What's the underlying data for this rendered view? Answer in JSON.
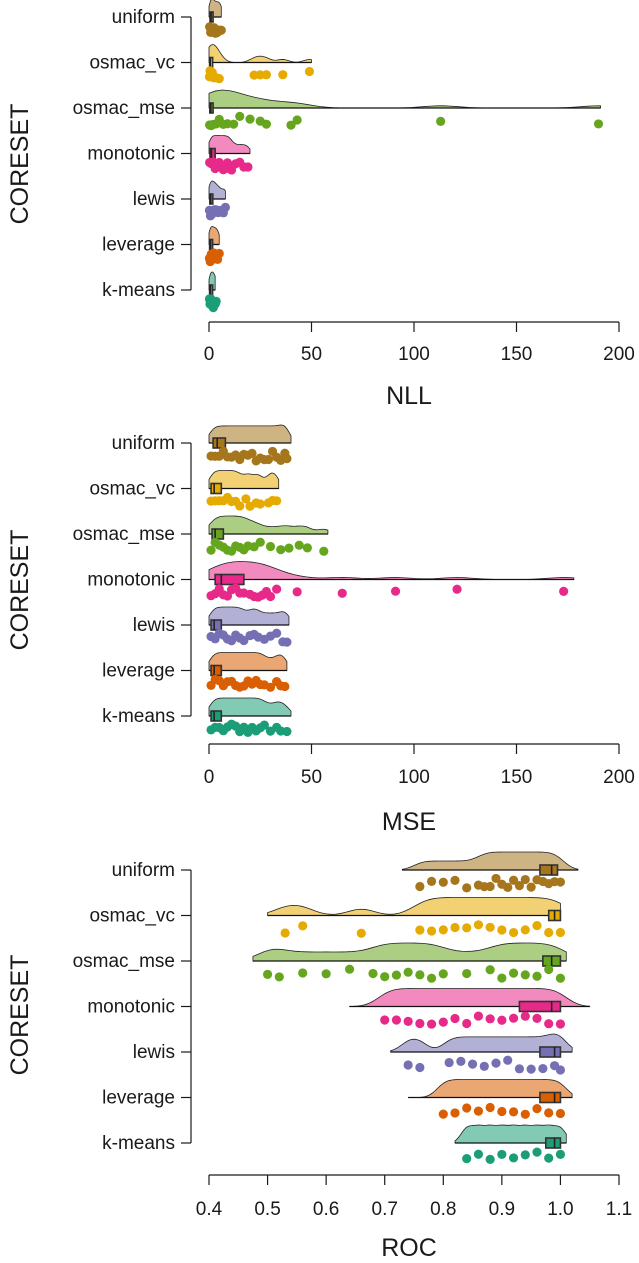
{
  "chart_data": [
    {
      "type": "raincloud",
      "xlabel": "NLL",
      "ylabel": "CORESET",
      "xlim": [
        0,
        200
      ],
      "xticks": [
        "0",
        "50",
        "100",
        "150",
        "200"
      ],
      "categories": [
        "uniform",
        "osmac_vc",
        "osmac_mse",
        "monotonic",
        "lewis",
        "leverage",
        "k-means"
      ],
      "colors": [
        "#a6761d",
        "#e6ab02",
        "#66a61e",
        "#e7298a",
        "#7570b3",
        "#d95f02",
        "#1b9e77"
      ],
      "series": [
        {
          "name": "uniform",
          "whisker": [
            0,
            6
          ],
          "box": [
            0.5,
            1,
            2
          ],
          "points": [
            0.3,
            0.8,
            1.2,
            1.8,
            2.5,
            3.1,
            4,
            4.6,
            5.4,
            6
          ]
        },
        {
          "name": "osmac_vc",
          "whisker": [
            0,
            50
          ],
          "box": [
            0.3,
            0.6,
            1.2
          ],
          "points": [
            0.2,
            0.5,
            1,
            1.6,
            2.3,
            3.5,
            5,
            22,
            25,
            28,
            36,
            49
          ]
        },
        {
          "name": "osmac_mse",
          "whisker": [
            0,
            191
          ],
          "box": [
            0.4,
            0.9,
            2
          ],
          "points": [
            0.3,
            1,
            2,
            3.5,
            5,
            7,
            9,
            12,
            15,
            20,
            25,
            28,
            40,
            43,
            113,
            190
          ]
        },
        {
          "name": "monotonic",
          "whisker": [
            0,
            20
          ],
          "box": [
            0.5,
            1.2,
            3
          ],
          "points": [
            0.3,
            1,
            2,
            3,
            4,
            5,
            6,
            7,
            8,
            9,
            10,
            11,
            13,
            15,
            17,
            19
          ]
        },
        {
          "name": "lewis",
          "whisker": [
            0,
            8
          ],
          "box": [
            0.4,
            0.8,
            1.5
          ],
          "points": [
            0.2,
            0.7,
            1.3,
            2,
            2.8,
            3.5,
            4.5,
            5.5,
            7,
            8
          ]
        },
        {
          "name": "leverage",
          "whisker": [
            0,
            5
          ],
          "box": [
            0.3,
            0.7,
            1.2
          ],
          "points": [
            0.2,
            0.6,
            1.1,
            1.7,
            2.3,
            3,
            3.6,
            4.2,
            5
          ]
        },
        {
          "name": "k-means",
          "whisker": [
            0,
            3
          ],
          "box": [
            0.3,
            0.6,
            1
          ],
          "points": [
            0.2,
            0.5,
            0.9,
            1.3,
            1.7,
            2.1,
            2.6,
            3.1,
            3.5
          ]
        }
      ]
    },
    {
      "type": "raincloud",
      "xlabel": "MSE",
      "ylabel": "CORESET",
      "xlim": [
        0,
        200
      ],
      "xticks": [
        "0",
        "50",
        "100",
        "150",
        "200"
      ],
      "categories": [
        "uniform",
        "osmac_vc",
        "osmac_mse",
        "monotonic",
        "lewis",
        "leverage",
        "k-means"
      ],
      "colors": [
        "#a6761d",
        "#e6ab02",
        "#66a61e",
        "#e7298a",
        "#7570b3",
        "#d95f02",
        "#1b9e77"
      ],
      "series": [
        {
          "name": "uniform",
          "whisker": [
            0,
            40
          ],
          "box": [
            2,
            4,
            8
          ],
          "points": [
            1,
            3,
            5,
            7,
            9,
            11,
            13,
            15,
            17,
            19,
            21,
            23,
            25,
            27,
            29,
            31,
            33,
            35,
            37,
            38
          ]
        },
        {
          "name": "osmac_vc",
          "whisker": [
            0,
            34
          ],
          "box": [
            1,
            2.5,
            6
          ],
          "points": [
            1,
            3,
            5,
            7,
            9,
            11,
            13,
            15,
            18,
            20,
            23,
            25,
            29,
            31,
            33
          ]
        },
        {
          "name": "osmac_mse",
          "whisker": [
            0,
            58
          ],
          "box": [
            1.5,
            3,
            7
          ],
          "points": [
            1,
            3,
            5,
            7,
            9,
            11,
            13,
            15,
            17,
            19,
            22,
            25,
            30,
            35,
            39,
            44,
            48,
            56
          ]
        },
        {
          "name": "monotonic",
          "whisker": [
            0,
            178
          ],
          "box": [
            3,
            6,
            17
          ],
          "points": [
            1,
            3,
            5,
            7,
            9,
            11,
            13,
            15,
            17,
            20,
            22,
            24,
            26,
            28,
            30,
            33,
            43,
            65,
            91,
            121,
            173
          ]
        },
        {
          "name": "lewis",
          "whisker": [
            0,
            39
          ],
          "box": [
            1,
            2.5,
            6
          ],
          "points": [
            1,
            3,
            5,
            7,
            9,
            11,
            13,
            15,
            17,
            20,
            22,
            24,
            27,
            30,
            33,
            36,
            38
          ]
        },
        {
          "name": "leverage",
          "whisker": [
            0,
            38
          ],
          "box": [
            1,
            2.5,
            6
          ],
          "points": [
            1,
            3,
            5,
            7,
            9,
            11,
            13,
            15,
            17,
            19,
            21,
            23,
            25,
            27,
            30,
            33,
            35,
            37
          ]
        },
        {
          "name": "k-means",
          "whisker": [
            0,
            40
          ],
          "box": [
            1,
            2.5,
            6
          ],
          "points": [
            1,
            3,
            5,
            7,
            9,
            11,
            13,
            15,
            17,
            19,
            21,
            23,
            25,
            27,
            30,
            33,
            35,
            38
          ]
        }
      ]
    },
    {
      "type": "raincloud",
      "xlabel": "ROC",
      "ylabel": "CORESET",
      "xlim": [
        0.4,
        1.1
      ],
      "xticks": [
        "0.4",
        "0.5",
        "0.6",
        "0.7",
        "0.8",
        "0.9",
        "1.0",
        "1.1"
      ],
      "categories": [
        "uniform",
        "osmac_vc",
        "osmac_mse",
        "monotonic",
        "lewis",
        "leverage",
        "k-means"
      ],
      "colors": [
        "#a6761d",
        "#e6ab02",
        "#66a61e",
        "#e7298a",
        "#7570b3",
        "#d95f02",
        "#1b9e77"
      ],
      "series": [
        {
          "name": "uniform",
          "whisker": [
            0.73,
            1.03
          ],
          "box": [
            0.965,
            0.985,
            0.995
          ],
          "points": [
            0.76,
            0.78,
            0.8,
            0.82,
            0.84,
            0.86,
            0.87,
            0.88,
            0.89,
            0.9,
            0.91,
            0.92,
            0.93,
            0.94,
            0.95,
            0.96,
            0.97,
            0.98,
            0.99,
            1.0
          ]
        },
        {
          "name": "osmac_vc",
          "whisker": [
            0.5,
            1.0
          ],
          "box": [
            0.98,
            0.99,
            1.0
          ],
          "points": [
            0.53,
            0.56,
            0.66,
            0.76,
            0.78,
            0.8,
            0.82,
            0.84,
            0.86,
            0.88,
            0.9,
            0.92,
            0.94,
            0.96,
            0.98,
            1.0
          ]
        },
        {
          "name": "osmac_mse",
          "whisker": [
            0.475,
            1.01
          ],
          "box": [
            0.97,
            0.985,
            1.0
          ],
          "points": [
            0.5,
            0.52,
            0.56,
            0.6,
            0.64,
            0.68,
            0.7,
            0.72,
            0.74,
            0.76,
            0.78,
            0.8,
            0.84,
            0.88,
            0.9,
            0.92,
            0.94,
            0.96,
            0.98,
            1.0
          ]
        },
        {
          "name": "monotonic",
          "whisker": [
            0.64,
            1.05
          ],
          "box": [
            0.93,
            0.985,
            1.0
          ],
          "points": [
            0.7,
            0.72,
            0.74,
            0.76,
            0.78,
            0.8,
            0.82,
            0.84,
            0.86,
            0.88,
            0.9,
            0.92,
            0.94,
            0.96,
            0.98,
            1.0
          ]
        },
        {
          "name": "lewis",
          "whisker": [
            0.71,
            1.02
          ],
          "box": [
            0.965,
            0.99,
            1.0
          ],
          "points": [
            0.74,
            0.76,
            0.81,
            0.83,
            0.85,
            0.87,
            0.89,
            0.91,
            0.93,
            0.95,
            0.97,
            0.99,
            1.0
          ]
        },
        {
          "name": "leverage",
          "whisker": [
            0.74,
            1.02
          ],
          "box": [
            0.965,
            0.99,
            1.0
          ],
          "points": [
            0.8,
            0.82,
            0.84,
            0.86,
            0.88,
            0.9,
            0.92,
            0.94,
            0.96,
            0.98,
            1.0
          ]
        },
        {
          "name": "k-means",
          "whisker": [
            0.82,
            1.01
          ],
          "box": [
            0.975,
            0.99,
            1.0
          ],
          "points": [
            0.84,
            0.86,
            0.88,
            0.9,
            0.92,
            0.94,
            0.96,
            0.98,
            1.0
          ]
        }
      ]
    }
  ]
}
